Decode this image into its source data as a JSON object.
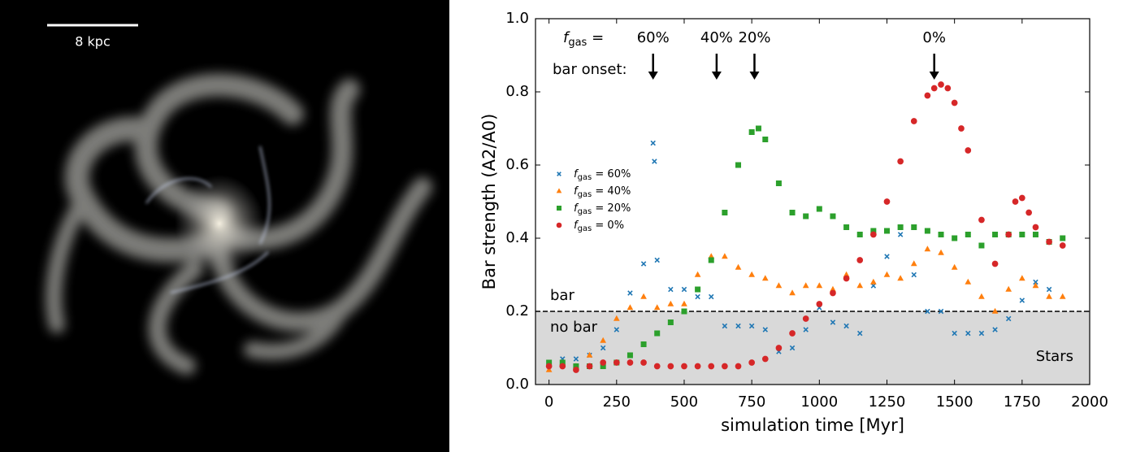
{
  "image": {
    "scale_bar_label": "8 kpc"
  },
  "chart_data": {
    "type": "scatter",
    "xlabel": "simulation time [Myr]",
    "ylabel": "Bar strength (A2/A0)",
    "xlim": [
      -50,
      2000
    ],
    "ylim": [
      0,
      1
    ],
    "xticks": [
      0,
      250,
      500,
      750,
      1000,
      1250,
      1500,
      1750,
      2000
    ],
    "yticks": [
      {
        "value": 0,
        "label": "0.0"
      },
      0.2,
      0.4,
      0.6,
      0.8,
      {
        "value": 1,
        "label": "1.0"
      }
    ],
    "threshold": 0.2,
    "threshold_above_label": "bar",
    "threshold_below_label": "no bar",
    "corner_label": "Stars",
    "annotation_prefix": "fgas =",
    "onset_label": "bar onset:",
    "bar_onsets": [
      {
        "x": 385,
        "label": "60%"
      },
      {
        "x": 620,
        "label": "40%"
      },
      {
        "x": 760,
        "label": "20%"
      },
      {
        "x": 1425,
        "label": "0%"
      }
    ],
    "legend": "center left",
    "series": [
      {
        "name": "fgas = 60%",
        "color": "#1f77b4",
        "marker": "x",
        "x": [
          0,
          50,
          100,
          150,
          200,
          250,
          300,
          350,
          385,
          390,
          400,
          450,
          500,
          550,
          600,
          650,
          700,
          750,
          800,
          850,
          900,
          950,
          1000,
          1050,
          1100,
          1150,
          1200,
          1250,
          1300,
          1350,
          1400,
          1450,
          1500,
          1550,
          1600,
          1650,
          1700,
          1750,
          1800,
          1850
        ],
        "values": [
          0.06,
          0.07,
          0.07,
          0.08,
          0.1,
          0.15,
          0.25,
          0.33,
          0.66,
          0.61,
          0.34,
          0.26,
          0.26,
          0.24,
          0.24,
          0.16,
          0.16,
          0.16,
          0.15,
          0.09,
          0.1,
          0.15,
          0.21,
          0.17,
          0.16,
          0.14,
          0.27,
          0.35,
          0.41,
          0.3,
          0.2,
          0.2,
          0.14,
          0.14,
          0.14,
          0.15,
          0.18,
          0.23,
          0.28,
          0.26
        ]
      },
      {
        "name": "fgas = 40%",
        "color": "#ff7f0e",
        "marker": "triangle",
        "x": [
          0,
          50,
          100,
          150,
          200,
          250,
          300,
          350,
          400,
          450,
          500,
          550,
          600,
          650,
          700,
          750,
          800,
          850,
          900,
          950,
          1000,
          1050,
          1100,
          1150,
          1200,
          1250,
          1300,
          1350,
          1400,
          1450,
          1500,
          1550,
          1600,
          1650,
          1700,
          1750,
          1800,
          1850,
          1900
        ],
        "values": [
          0.04,
          0.06,
          0.05,
          0.08,
          0.12,
          0.18,
          0.21,
          0.24,
          0.21,
          0.22,
          0.22,
          0.3,
          0.35,
          0.35,
          0.32,
          0.3,
          0.29,
          0.27,
          0.25,
          0.27,
          0.27,
          0.26,
          0.3,
          0.27,
          0.28,
          0.3,
          0.29,
          0.33,
          0.37,
          0.36,
          0.32,
          0.28,
          0.24,
          0.2,
          0.26,
          0.29,
          0.27,
          0.24,
          0.24
        ]
      },
      {
        "name": "fgas = 20%",
        "color": "#2ca02c",
        "marker": "square",
        "x": [
          0,
          50,
          100,
          150,
          200,
          250,
          300,
          350,
          400,
          450,
          500,
          550,
          600,
          650,
          700,
          750,
          775,
          800,
          850,
          900,
          950,
          1000,
          1050,
          1100,
          1150,
          1200,
          1250,
          1300,
          1350,
          1400,
          1450,
          1500,
          1550,
          1600,
          1650,
          1700,
          1750,
          1800,
          1850,
          1900
        ],
        "values": [
          0.06,
          0.06,
          0.05,
          0.05,
          0.05,
          0.06,
          0.08,
          0.11,
          0.14,
          0.17,
          0.2,
          0.26,
          0.34,
          0.47,
          0.6,
          0.69,
          0.7,
          0.67,
          0.55,
          0.47,
          0.46,
          0.48,
          0.46,
          0.43,
          0.41,
          0.42,
          0.42,
          0.43,
          0.43,
          0.42,
          0.41,
          0.4,
          0.41,
          0.38,
          0.41,
          0.41,
          0.41,
          0.41,
          0.39,
          0.4
        ]
      },
      {
        "name": "fgas = 0%",
        "color": "#d62728",
        "marker": "circle",
        "x": [
          0,
          50,
          100,
          150,
          200,
          250,
          300,
          350,
          400,
          450,
          500,
          550,
          600,
          650,
          700,
          750,
          800,
          850,
          900,
          950,
          1000,
          1050,
          1100,
          1150,
          1200,
          1250,
          1300,
          1350,
          1400,
          1425,
          1450,
          1475,
          1500,
          1525,
          1550,
          1600,
          1650,
          1700,
          1725,
          1750,
          1775,
          1800,
          1850,
          1900
        ],
        "values": [
          0.05,
          0.05,
          0.04,
          0.05,
          0.06,
          0.06,
          0.06,
          0.06,
          0.05,
          0.05,
          0.05,
          0.05,
          0.05,
          0.05,
          0.05,
          0.06,
          0.07,
          0.1,
          0.14,
          0.18,
          0.22,
          0.25,
          0.29,
          0.34,
          0.41,
          0.5,
          0.61,
          0.72,
          0.79,
          0.81,
          0.82,
          0.81,
          0.77,
          0.7,
          0.64,
          0.45,
          0.33,
          0.41,
          0.5,
          0.51,
          0.47,
          0.43,
          0.39,
          0.38
        ]
      }
    ]
  }
}
